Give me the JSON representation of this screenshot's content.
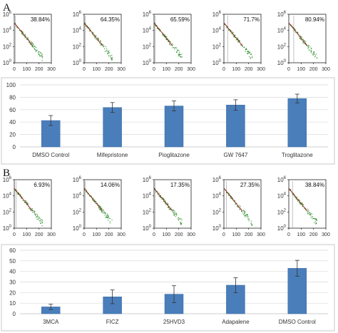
{
  "panels": [
    {
      "letter": "A",
      "histograms": [
        {
          "percent": "38.84%",
          "gate": 10
        },
        {
          "percent": "64.35%",
          "gate": 10
        },
        {
          "percent": "65.59%",
          "gate": 10
        },
        {
          "percent": "71.7%",
          "gate": 30
        },
        {
          "percent": "80.94%",
          "gate": 40
        }
      ]
    },
    {
      "letter": "B",
      "histograms": [
        {
          "percent": "6.93%",
          "gate": 15
        },
        {
          "percent": "14.06%",
          "gate": 10
        },
        {
          "percent": "17.35%",
          "gate": 10
        },
        {
          "percent": "27.35%",
          "gate": 20
        },
        {
          "percent": "38.84%",
          "gate": 30
        }
      ]
    }
  ],
  "histogram_axes": {
    "x_ticks": [
      "0",
      "100",
      "200",
      "300"
    ],
    "y_ticks": [
      {
        "base": "10",
        "exp": "0"
      },
      {
        "base": "10",
        "exp": "2"
      },
      {
        "base": "10",
        "exp": "4"
      },
      {
        "base": "10",
        "exp": "6"
      }
    ]
  },
  "colors": {
    "bar": "#4a7ebb",
    "histogram_points": "#2f8f2f",
    "fit_line": "#a01818"
  },
  "chart_data": [
    {
      "type": "bar",
      "categories": [
        "DMSO Control",
        "Mifepristone",
        "Pioglitazone",
        "GW 7647",
        "Troglitazone"
      ],
      "values": [
        42.5,
        63.5,
        66,
        67.5,
        78
      ],
      "errors": [
        8,
        8,
        8,
        8.5,
        7
      ],
      "ylim": [
        0,
        100
      ],
      "yticks": [
        "0",
        "20",
        "40",
        "60",
        "80",
        "100"
      ],
      "grid": true
    },
    {
      "type": "bar",
      "categories": [
        "3MCA",
        "FICZ",
        "25HVD3",
        "Adapalene",
        "DMSO Control"
      ],
      "values": [
        6.5,
        16,
        18.5,
        27,
        43
      ],
      "errors": [
        2.5,
        6.5,
        8,
        7,
        7.5
      ],
      "ylim": [
        0,
        60
      ],
      "yticks": [
        "0",
        "10",
        "20",
        "30",
        "40",
        "50",
        "60"
      ],
      "grid": true
    }
  ]
}
